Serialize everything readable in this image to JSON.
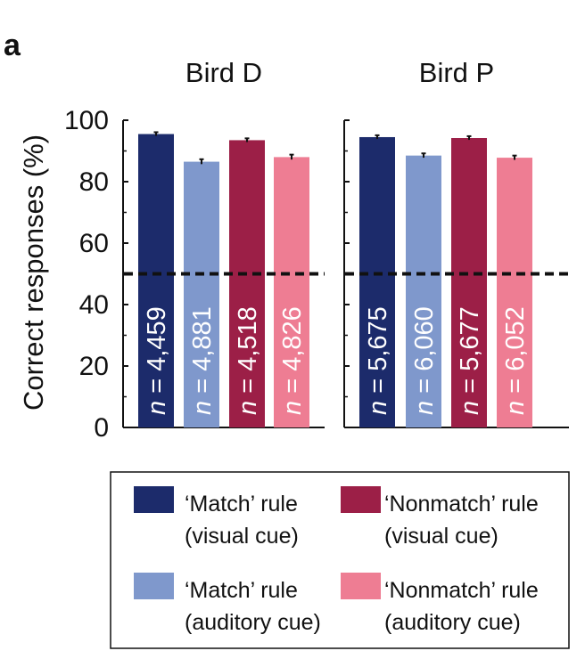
{
  "figure": {
    "panel_letter": "a",
    "ylabel": "Correct responses (%)"
  },
  "chart_data": {
    "type": "bar",
    "ylabel": "Correct responses (%)",
    "ylim": [
      0,
      100
    ],
    "yticks": [
      0,
      20,
      40,
      60,
      80,
      100
    ],
    "reference_line": 50,
    "panels": [
      {
        "title": "Bird D",
        "categories": [
          "Match visual",
          "Match auditory",
          "Nonmatch visual",
          "Nonmatch auditory"
        ],
        "values": [
          95.5,
          86.5,
          93.5,
          88
        ],
        "errors": [
          0.6,
          0.8,
          0.6,
          0.8
        ],
        "n_labels": [
          "4,459",
          "4,881",
          "4,518",
          "4,826"
        ],
        "colors": [
          "#1c2b6b",
          "#7f98cc",
          "#9c1f47",
          "#ee7d93"
        ]
      },
      {
        "title": "Bird P",
        "categories": [
          "Match visual",
          "Match auditory",
          "Nonmatch visual",
          "Nonmatch auditory"
        ],
        "values": [
          94.5,
          88.5,
          94.2,
          87.8
        ],
        "errors": [
          0.6,
          0.7,
          0.6,
          0.7
        ],
        "n_labels": [
          "5,675",
          "6,060",
          "5,677",
          "6,052"
        ],
        "colors": [
          "#1c2b6b",
          "#7f98cc",
          "#9c1f47",
          "#ee7d93"
        ]
      }
    ],
    "legend": [
      {
        "line1": "‘Match’ rule",
        "line2": "(visual cue)",
        "color": "#1c2b6b"
      },
      {
        "line1": "‘Nonmatch’ rule",
        "line2": "(visual cue)",
        "color": "#9c1f47"
      },
      {
        "line1": "‘Match’ rule",
        "line2": "(auditory cue)",
        "color": "#7f98cc"
      },
      {
        "line1": "‘Nonmatch’ rule",
        "line2": "(auditory cue)",
        "color": "#ee7d93"
      }
    ],
    "n_prefix": "n",
    "n_equals": " = "
  }
}
